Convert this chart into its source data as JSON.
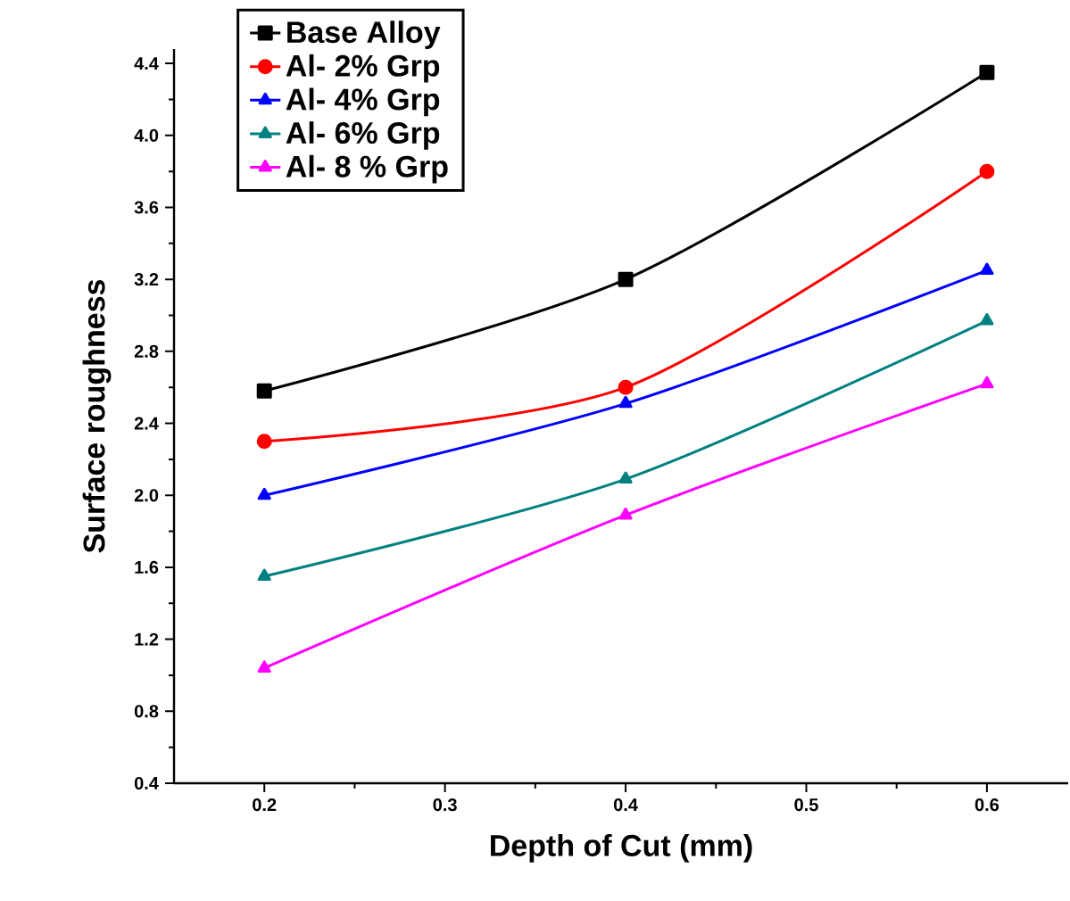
{
  "chart_data": {
    "type": "line",
    "xlabel": "Depth of Cut (mm)",
    "ylabel": "Surface roughness",
    "x": [
      0.2,
      0.4,
      0.6
    ],
    "series": [
      {
        "name": "Base Alloy",
        "color": "#000000",
        "marker": "square",
        "values": [
          2.58,
          3.2,
          4.35
        ]
      },
      {
        "name": "Al- 2% Grp",
        "color": "#ff0000",
        "marker": "circle",
        "values": [
          2.3,
          2.6,
          3.8
        ]
      },
      {
        "name": "Al- 4% Grp",
        "color": "#0000ff",
        "marker": "triangle",
        "values": [
          2.0,
          2.51,
          3.25
        ]
      },
      {
        "name": "Al- 6% Grp",
        "color": "#008080",
        "marker": "triangle",
        "values": [
          1.55,
          2.09,
          2.97
        ]
      },
      {
        "name": "Al- 8 % Grp",
        "color": "#ff00ff",
        "marker": "triangle",
        "values": [
          1.04,
          1.89,
          2.62
        ]
      }
    ],
    "xlim": [
      0.15,
      0.645
    ],
    "ylim": [
      0.4,
      4.48
    ],
    "xticks": [
      0.2,
      0.3,
      0.4,
      0.5,
      0.6
    ],
    "yticks": [
      {
        "value": 0.4,
        "label": "0.4"
      },
      {
        "value": 0.8,
        "label": "0.8"
      },
      {
        "value": 1.2,
        "label": "1.2"
      },
      {
        "value": 1.6,
        "label": "1.6"
      },
      {
        "value": 2.0,
        "label": "2.0"
      },
      {
        "value": 2.4,
        "label": "2.4"
      },
      {
        "value": 2.8,
        "label": "2.8"
      },
      {
        "value": 3.2,
        "label": "3.2"
      },
      {
        "value": 3.6,
        "label": "3.6"
      },
      {
        "value": 4.0,
        "label": "4.0"
      },
      {
        "value": 4.4,
        "label": "4.4"
      }
    ],
    "grid": false,
    "legend": "top left",
    "line_style": "solid"
  }
}
